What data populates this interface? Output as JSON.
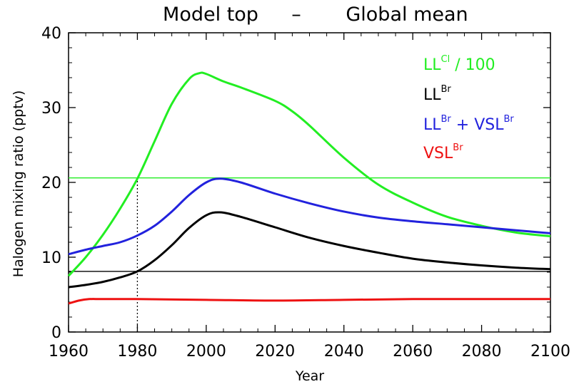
{
  "chart_data": {
    "type": "line",
    "title_parts": [
      "Model top",
      "–",
      "Global mean"
    ],
    "xlabel": "Year",
    "ylabel": "Halogen mixing ratio (pptv)",
    "xlim": [
      1960,
      2100
    ],
    "ylim": [
      0,
      40
    ],
    "xticks": [
      "1960",
      "1980",
      "2000",
      "2020",
      "2040",
      "2060",
      "2080",
      "2100"
    ],
    "yticks": [
      "0",
      "10",
      "20",
      "30",
      "40"
    ],
    "grid": false,
    "legend_position": "top-right",
    "series": [
      {
        "legend_base": "LL",
        "legend_sup": "Cl",
        "legend_suffix": " / 100",
        "color": "#22ee22",
        "x": [
          1960,
          1965,
          1970,
          1975,
          1980,
          1985,
          1990,
          1995,
          1998,
          2000,
          2005,
          2010,
          2020,
          2025,
          2030,
          2040,
          2050,
          2060,
          2070,
          2080,
          2090,
          2100
        ],
        "y": [
          7.5,
          10,
          13,
          16.5,
          20.5,
          25.5,
          30.5,
          33.8,
          34.6,
          34.5,
          33.5,
          32.7,
          30.9,
          29.5,
          27.6,
          23.3,
          19.7,
          17.3,
          15.4,
          14.2,
          13.3,
          12.8
        ]
      },
      {
        "legend_base": "LL",
        "legend_sup": "Br",
        "legend_suffix": "",
        "color": "#000000",
        "x": [
          1960,
          1965,
          1970,
          1975,
          1980,
          1985,
          1990,
          1995,
          2000,
          2004,
          2010,
          2020,
          2030,
          2040,
          2050,
          2060,
          2070,
          2080,
          2090,
          2100
        ],
        "y": [
          6,
          6.3,
          6.7,
          7.3,
          8.1,
          9.6,
          11.6,
          13.9,
          15.6,
          16,
          15.4,
          14,
          12.6,
          11.5,
          10.6,
          9.8,
          9.3,
          8.9,
          8.6,
          8.4
        ]
      },
      {
        "legend_base": "LL",
        "legend_sup": "Br",
        "legend_suffix": " + VSL",
        "legend_sup2": "Br",
        "color": "#2222dd",
        "x": [
          1960,
          1965,
          1970,
          1975,
          1980,
          1985,
          1990,
          1995,
          2000,
          2004,
          2010,
          2020,
          2030,
          2040,
          2050,
          2060,
          2070,
          2080,
          2090,
          2100
        ],
        "y": [
          10.4,
          11,
          11.5,
          12,
          12.9,
          14.2,
          16.1,
          18.3,
          20,
          20.5,
          20,
          18.5,
          17.2,
          16.1,
          15.3,
          14.8,
          14.4,
          14,
          13.6,
          13.2
        ]
      },
      {
        "legend_base": "VSL",
        "legend_sup": "Br",
        "legend_suffix": "",
        "color": "#ee1111",
        "x": [
          1960,
          1963,
          1966,
          1970,
          1980,
          2000,
          2020,
          2040,
          2060,
          2080,
          2100
        ],
        "y": [
          3.8,
          4.2,
          4.4,
          4.4,
          4.4,
          4.3,
          4.2,
          4.3,
          4.4,
          4.4,
          4.4
        ]
      }
    ],
    "reference_lines": [
      {
        "orientation": "horizontal",
        "y": 20.6,
        "color": "#22ee22"
      },
      {
        "orientation": "horizontal",
        "y": 8.1,
        "color": "#000000"
      },
      {
        "orientation": "vertical",
        "x": 1980,
        "y_top": 20.6,
        "style": "dotted",
        "color": "#000000"
      }
    ]
  }
}
